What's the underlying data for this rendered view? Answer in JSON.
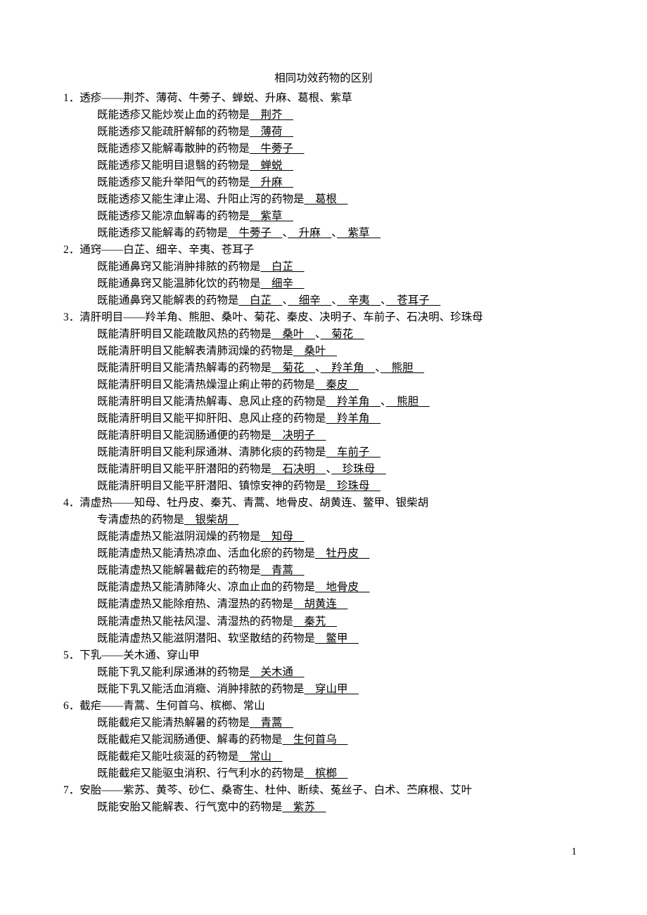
{
  "title": "相同功效药物的区别",
  "page_number": "1",
  "items": [
    {
      "num": "1．",
      "header": "透疹——荆芥、薄荷、牛蒡子、蝉蜕、升麻、葛根、紫草",
      "lines": [
        {
          "prefix": "既能透疹又能炒炭止血的药物是",
          "fills": [
            "　荆芥　"
          ]
        },
        {
          "prefix": "既能透疹又能疏肝解郁的药物是",
          "fills": [
            "　薄荷　"
          ]
        },
        {
          "prefix": "既能透疹又能解毒散肿的药物是",
          "fills": [
            "　牛蒡子　"
          ]
        },
        {
          "prefix": "既能透疹又能明目退翳的药物是",
          "fills": [
            "　蝉蜕　"
          ]
        },
        {
          "prefix": "既能透疹又能升举阳气的药物是",
          "fills": [
            "　升麻　"
          ]
        },
        {
          "prefix": "既能透疹又能生津止渴、升阳止泻的药物是",
          "fills": [
            "　葛根　"
          ]
        },
        {
          "prefix": "既能透疹又能凉血解毒的药物是",
          "fills": [
            "　紫草　"
          ]
        },
        {
          "prefix": "既能透疹又能解毒的药物是",
          "fills": [
            "　牛蒡子　",
            "　升麻　",
            "　紫草　"
          ]
        }
      ]
    },
    {
      "num": "2．",
      "header": "通窍——白芷、细辛、辛夷、苍耳子",
      "lines": [
        {
          "prefix": "既能通鼻窍又能消肿排脓的药物是",
          "fills": [
            "　白芷　"
          ]
        },
        {
          "prefix": "既能通鼻窍又能温肺化饮的药物是",
          "fills": [
            "　细辛　"
          ]
        },
        {
          "prefix": "既能通鼻窍又能解表的药物是",
          "fills": [
            "　白芷　",
            "　细辛　",
            "　辛夷　",
            "　苍耳子　"
          ]
        }
      ]
    },
    {
      "num": "3．",
      "header": "清肝明目——羚羊角、熊胆、桑叶、菊花、秦皮、决明子、车前子、石决明、珍珠母",
      "lines": [
        {
          "prefix": "既能清肝明目又能疏散风热的药物是",
          "fills": [
            "　桑叶　",
            "　菊花　"
          ]
        },
        {
          "prefix": "既能清肝明目又能解表清肺润燥的药物是",
          "fills": [
            "　桑叶　"
          ]
        },
        {
          "prefix": "既能清肝明目又能清热解毒的药物是",
          "fills": [
            "　菊花　",
            "　羚羊角　",
            "　熊胆　"
          ]
        },
        {
          "prefix": "既能清肝明目又能清热燥湿止痢止带的药物是",
          "fills": [
            "　秦皮　"
          ]
        },
        {
          "prefix": "既能清肝明目又能清热解毒、息风止痉的药物是",
          "fills": [
            "　羚羊角　",
            "　熊胆　"
          ]
        },
        {
          "prefix": "既能清肝明目又能平抑肝阳、息风止痉的药物是",
          "fills": [
            "　羚羊角　"
          ]
        },
        {
          "prefix": "既能清肝明目又能润肠通便的药物是",
          "fills": [
            "　决明子　"
          ]
        },
        {
          "prefix": "既能清肝明目又能利尿通淋、清肺化痰的药物是",
          "fills": [
            "　车前子　"
          ]
        },
        {
          "prefix": "既能清肝明目又能平肝潜阳的药物是",
          "fills": [
            "　石决明　",
            "　珍珠母　"
          ]
        },
        {
          "prefix": "既能清肝明目又能平肝潜阳、镇惊安神的药物是",
          "fills": [
            "　珍珠母　"
          ]
        }
      ]
    },
    {
      "num": "4．",
      "header": "清虚热——知母、牡丹皮、秦艽、青蒿、地骨皮、胡黄连、鳖甲、银柴胡",
      "lines": [
        {
          "prefix": "专清虚热的药物是",
          "fills": [
            "　银柴胡　"
          ]
        },
        {
          "prefix": "既能清虚热又能滋阴润燥的药物是",
          "fills": [
            "　知母　"
          ]
        },
        {
          "prefix": "既能清虚热又能清热凉血、活血化瘀的药物是",
          "fills": [
            "　牡丹皮　"
          ]
        },
        {
          "prefix": "既能清虚热又能解暑截疟的药物是",
          "fills": [
            "　青蒿　"
          ]
        },
        {
          "prefix": "既能清虚热又能清肺降火、凉血止血的药物是",
          "fills": [
            "　地骨皮　"
          ]
        },
        {
          "prefix": "既能清虚热又能除疳热、清湿热的药物是",
          "fills": [
            "　胡黄连　"
          ]
        },
        {
          "prefix": "既能清虚热又能祛风湿、清湿热的药物是",
          "fills": [
            "　秦艽　"
          ]
        },
        {
          "prefix": "既能清虚热又能滋阴潜阳、软坚散结的药物是",
          "fills": [
            "　鳖甲　"
          ]
        }
      ]
    },
    {
      "num": "5．",
      "header": "下乳——关木通、穿山甲",
      "lines": [
        {
          "prefix": "既能下乳又能利尿通淋的药物是",
          "fills": [
            "　关木通　"
          ]
        },
        {
          "prefix": "既能下乳又能活血消癥、消肿排脓的药物是",
          "fills": [
            "　穿山甲　"
          ]
        }
      ]
    },
    {
      "num": "6．",
      "header": "截疟——青蒿、生何首乌、槟榔、常山",
      "lines": [
        {
          "prefix": "既能截疟又能清热解暑的药物是",
          "fills": [
            "　青蒿　"
          ]
        },
        {
          "prefix": "既能截疟又能润肠通便、解毒的药物是",
          "fills": [
            "　生何首乌　"
          ]
        },
        {
          "prefix": "既能截疟又能吐痰涎的药物是",
          "fills": [
            "　常山　"
          ]
        },
        {
          "prefix": "既能截疟又能驱虫消积、行气利水的药物是",
          "fills": [
            "　槟榔　"
          ]
        }
      ]
    },
    {
      "num": "7．",
      "header": "安胎——紫苏、黄芩、砂仁、桑寄生、杜仲、断续、菟丝子、白术、苎麻根、艾叶",
      "lines": [
        {
          "prefix": "既能安胎又能解表、行气宽中的药物是",
          "fills": [
            "　紫苏　"
          ]
        }
      ]
    }
  ]
}
